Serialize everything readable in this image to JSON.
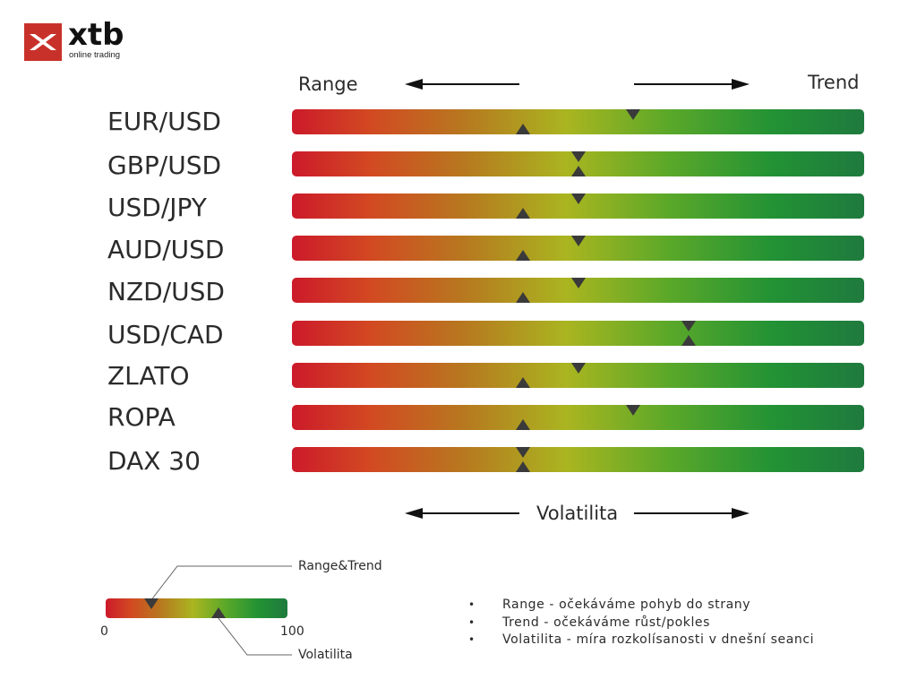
{
  "logo": {
    "brand": "xtb",
    "tagline": "online trading",
    "brand_color": "#c8312a"
  },
  "header": {
    "left_label": "Range",
    "right_label": "Trend",
    "bottom_label": "Volatilita"
  },
  "scale": {
    "min": 0,
    "max": 100
  },
  "assets": [
    {
      "label": "EUR/USD",
      "range_trend": 60,
      "volatility": 40
    },
    {
      "label": "GBP/USD",
      "range_trend": 50,
      "volatility": 50
    },
    {
      "label": "USD/JPY",
      "range_trend": 50,
      "volatility": 40
    },
    {
      "label": "AUD/USD",
      "range_trend": 50,
      "volatility": 40
    },
    {
      "label": "NZD/USD",
      "range_trend": 50,
      "volatility": 40
    },
    {
      "label": "USD/CAD",
      "range_trend": 70,
      "volatility": 70
    },
    {
      "label": "ZLATO",
      "range_trend": 50,
      "volatility": 40
    },
    {
      "label": "ROPA",
      "range_trend": 60,
      "volatility": 40
    },
    {
      "label": "DAX 30",
      "range_trend": 40,
      "volatility": 40
    }
  ],
  "legend": {
    "range_trend_label": "Range&Trend",
    "volatility_label": "Volatilita",
    "min_label": "0",
    "max_label": "100",
    "range_trend_value": 25,
    "volatility_value": 62
  },
  "notes": [
    "Range - očekáváme pohyb do strany",
    "Trend - očekáváme růst/pokles",
    "Volatilita - míra rozkolísanosti v dnešní seanci"
  ],
  "gradient_colors": [
    "#cc1a2a",
    "#d24a22",
    "#b7781f",
    "#aab520",
    "#5aa829",
    "#229234",
    "#1f7a3e"
  ],
  "marker_color": "#3a3a3a"
}
